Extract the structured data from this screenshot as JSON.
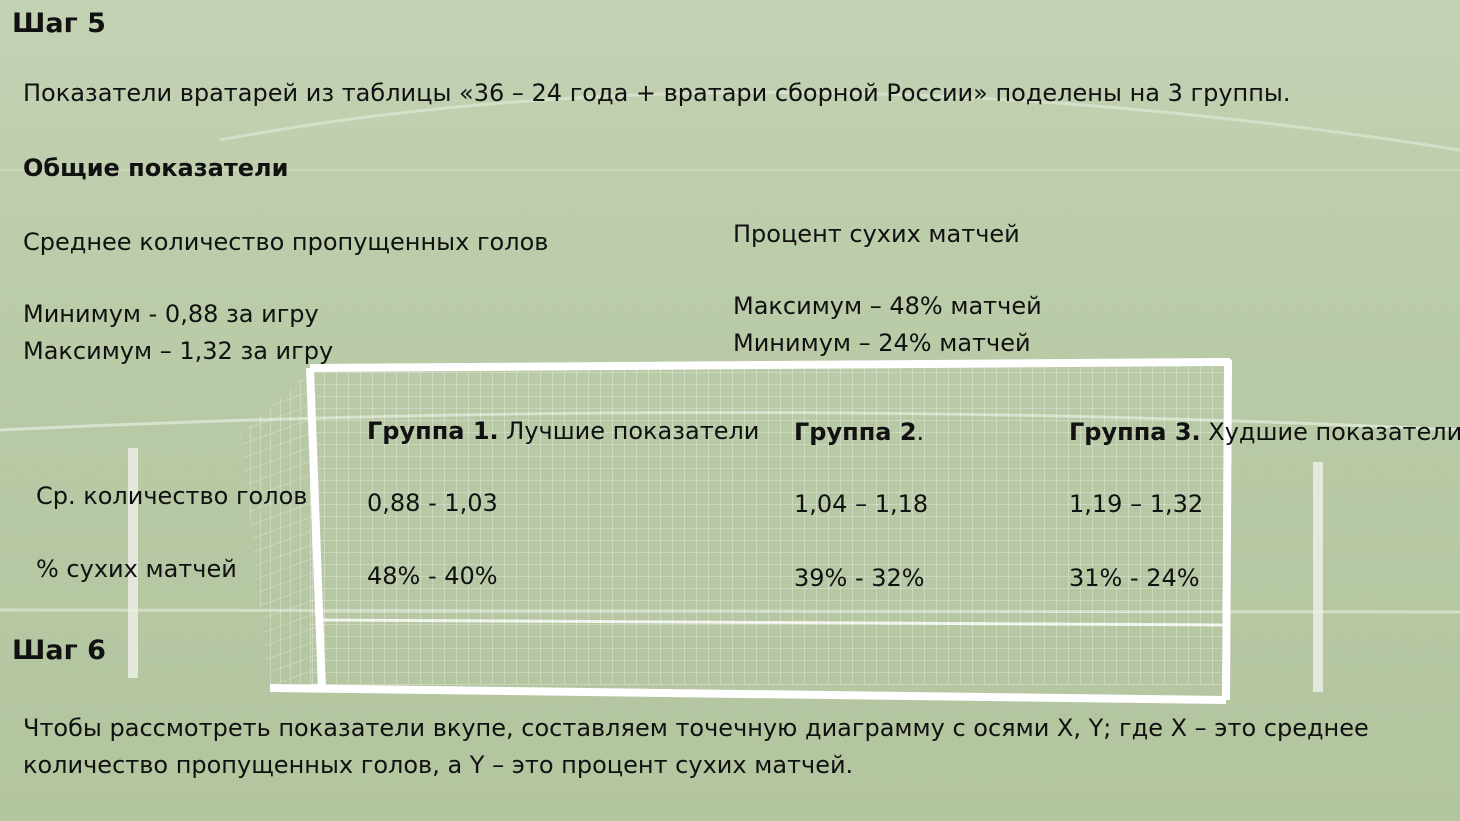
{
  "step5": {
    "title": "Шаг 5",
    "intro": "Показатели вратарей из таблицы «36 – 24 года + вратари сборной России» поделены на 3 группы.",
    "general_heading": "Общие показатели",
    "goals": {
      "label": "Среднее количество пропущенных голов",
      "min": "Минимум - 0,88 за игру",
      "max": "Максимум – 1,32 за игру"
    },
    "cleansheets": {
      "label": "Процент сухих матчей",
      "max": "Максимум – 48% матчей",
      "min": "Минимум – 24% матчей"
    }
  },
  "table": {
    "groups": [
      {
        "name": "Группа 1.",
        "desc": " Лучшие показатели"
      },
      {
        "name": "Группа 2",
        "desc": "."
      },
      {
        "name": "Группа 3.",
        "desc": " Худшие показатели"
      }
    ],
    "rows": [
      {
        "label": "Ср. количество голов",
        "values": [
          "0,88 - 1,03",
          "1,04 – 1,18",
          "1,19 – 1,32"
        ]
      },
      {
        "label": "% сухих матчей",
        "values": [
          "48% - 40%",
          "39% - 32%",
          "31% - 24%"
        ]
      }
    ]
  },
  "step6": {
    "title": "Шаг 6",
    "text_line1": "Чтобы рассмотреть показатели вкупе, составляем точечную диаграмму с осями X, Y; где X – это среднее",
    "text_line2": "количество пропущенных голов, а Y – это процент сухих матчей."
  }
}
